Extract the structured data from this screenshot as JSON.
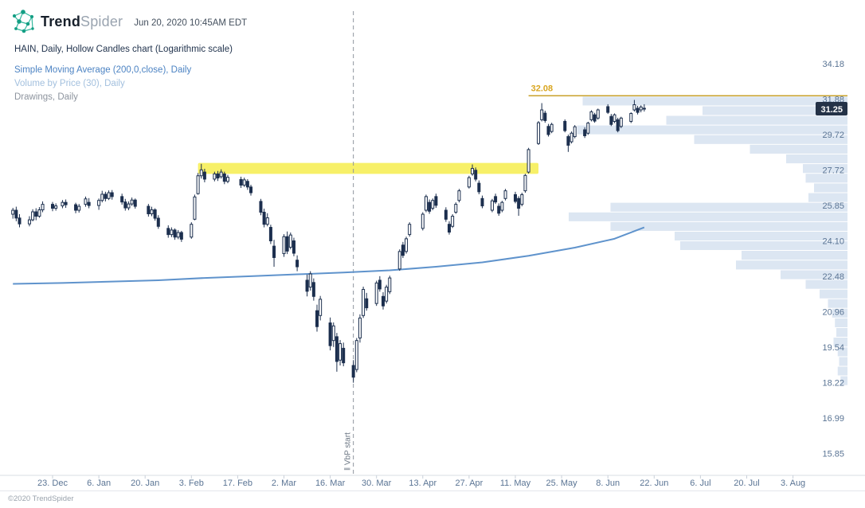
{
  "header": {
    "brand_bold": "Trend",
    "brand_light": "Spider",
    "timestamp": "Jun 20, 2020 10:45AM EDT"
  },
  "legend": {
    "main": {
      "label": "HAIN, Daily, Hollow Candles chart (Logarithmic scale)",
      "color": "#22344e"
    },
    "sma": {
      "label": "Simple Moving Average (200,0,close), Daily",
      "color": "#4c83c3"
    },
    "vbp": {
      "label": "Volume by Price (30), Daily",
      "color": "#a3c0de"
    },
    "drawings": {
      "label": "Drawings, Daily",
      "color": "#8d949e"
    }
  },
  "footer": {
    "copyright": "©2020 TrendSpider"
  },
  "chart_data": {
    "type": "candlestick",
    "symbol": "HAIN",
    "timeframe": "Daily",
    "style": "hollow-candles",
    "scale": "logarithmic",
    "last_price": "31.25",
    "colors": {
      "candle": "#1c2f4e",
      "sma": "#5f93cc",
      "vbp": "#dce6f2",
      "axis_text": "#5a7494",
      "badge_bg": "#243247",
      "badge_text": "#ffffff"
    },
    "y_axis_ticks": [
      "34.18",
      "31.88",
      "29.72",
      "27.72",
      "25.85",
      "24.10",
      "22.48",
      "20.96",
      "19.54",
      "18.22",
      "16.99",
      "15.85"
    ],
    "x_axis_ticks": [
      {
        "date": "2019-12-23",
        "label": "23. Dec"
      },
      {
        "date": "2020-01-06",
        "label": "6. Jan"
      },
      {
        "date": "2020-01-20",
        "label": "20. Jan"
      },
      {
        "date": "2020-02-03",
        "label": "3. Feb"
      },
      {
        "date": "2020-02-17",
        "label": "17. Feb"
      },
      {
        "date": "2020-03-02",
        "label": "2. Mar"
      },
      {
        "date": "2020-03-16",
        "label": "16. Mar"
      },
      {
        "date": "2020-03-30",
        "label": "30. Mar"
      },
      {
        "date": "2020-04-13",
        "label": "13. Apr"
      },
      {
        "date": "2020-04-27",
        "label": "27. Apr"
      },
      {
        "date": "2020-05-11",
        "label": "11. May"
      },
      {
        "date": "2020-05-25",
        "label": "25. May"
      },
      {
        "date": "2020-06-08",
        "label": "8. Jun"
      },
      {
        "date": "2020-06-22",
        "label": "22. Jun"
      },
      {
        "date": "2020-07-06",
        "label": "6. Jul"
      },
      {
        "date": "2020-07-20",
        "label": "20. Jul"
      },
      {
        "date": "2020-08-03",
        "label": "3. Aug"
      }
    ],
    "candles": [
      [
        "2019-12-11",
        25.4,
        25.72,
        25.18,
        25.6
      ],
      [
        "2019-12-12",
        25.6,
        25.78,
        25.05,
        25.21
      ],
      [
        "2019-12-13",
        25.21,
        25.4,
        24.75,
        24.92
      ],
      [
        "2019-12-16",
        24.92,
        25.3,
        24.8,
        25.12
      ],
      [
        "2019-12-17",
        25.12,
        25.65,
        25.05,
        25.52
      ],
      [
        "2019-12-18",
        25.52,
        25.7,
        25.1,
        25.3
      ],
      [
        "2019-12-19",
        25.3,
        25.76,
        25.22,
        25.62
      ],
      [
        "2019-12-20",
        25.62,
        26.05,
        25.5,
        25.9
      ],
      [
        "2019-12-23",
        25.9,
        26.02,
        25.55,
        25.7
      ],
      [
        "2019-12-24",
        25.7,
        25.95,
        25.58,
        25.82
      ],
      [
        "2019-12-26",
        25.82,
        26.12,
        25.7,
        26.0
      ],
      [
        "2019-12-27",
        26.0,
        26.15,
        25.72,
        25.88
      ],
      [
        "2019-12-30",
        25.88,
        25.98,
        25.45,
        25.6
      ],
      [
        "2019-12-31",
        25.6,
        25.92,
        25.48,
        25.8
      ],
      [
        "2020-01-02",
        25.9,
        26.3,
        25.78,
        26.18
      ],
      [
        "2020-01-03",
        26.0,
        26.22,
        25.7,
        25.84
      ],
      [
        "2020-01-06",
        25.84,
        26.2,
        25.62,
        26.1
      ],
      [
        "2020-01-07",
        26.1,
        26.6,
        26.0,
        26.42
      ],
      [
        "2020-01-08",
        26.42,
        26.55,
        26.05,
        26.2
      ],
      [
        "2020-01-09",
        26.2,
        26.62,
        26.12,
        26.5
      ],
      [
        "2020-01-10",
        26.5,
        26.64,
        26.14,
        26.3
      ],
      [
        "2020-01-13",
        26.3,
        26.45,
        25.88,
        26.02
      ],
      [
        "2020-01-14",
        26.02,
        26.18,
        25.58,
        25.72
      ],
      [
        "2020-01-15",
        25.72,
        26.05,
        25.6,
        25.92
      ],
      [
        "2020-01-16",
        25.92,
        26.25,
        25.82,
        26.12
      ],
      [
        "2020-01-17",
        26.12,
        26.2,
        25.68,
        25.8
      ],
      [
        "2020-01-21",
        25.8,
        25.92,
        25.28,
        25.42
      ],
      [
        "2020-01-22",
        25.42,
        25.78,
        25.3,
        25.62
      ],
      [
        "2020-01-23",
        25.62,
        25.7,
        25.08,
        25.2
      ],
      [
        "2020-01-24",
        25.2,
        25.35,
        24.68,
        24.8
      ],
      [
        "2020-01-27",
        24.7,
        24.85,
        24.25,
        24.4
      ],
      [
        "2020-01-28",
        24.4,
        24.75,
        24.28,
        24.62
      ],
      [
        "2020-01-29",
        24.62,
        24.7,
        24.15,
        24.28
      ],
      [
        "2020-01-30",
        24.28,
        24.62,
        24.18,
        24.5
      ],
      [
        "2020-01-31",
        24.5,
        24.58,
        24.05,
        24.18
      ],
      [
        "2020-02-03",
        24.28,
        25.0,
        24.2,
        24.9
      ],
      [
        "2020-02-04",
        25.15,
        26.4,
        25.1,
        26.28
      ],
      [
        "2020-02-05",
        26.45,
        27.55,
        26.4,
        27.4
      ],
      [
        "2020-02-06",
        27.4,
        28.05,
        27.25,
        27.72
      ],
      [
        "2020-02-07",
        27.6,
        27.78,
        27.05,
        27.22
      ],
      [
        "2020-02-10",
        27.22,
        27.62,
        27.1,
        27.5
      ],
      [
        "2020-02-11",
        27.5,
        27.66,
        27.12,
        27.28
      ],
      [
        "2020-02-12",
        27.35,
        27.75,
        27.25,
        27.6
      ],
      [
        "2020-02-13",
        27.5,
        27.62,
        26.95,
        27.1
      ],
      [
        "2020-02-14",
        27.1,
        27.45,
        27.0,
        27.32
      ],
      [
        "2020-02-18",
        27.2,
        27.35,
        26.75,
        26.9
      ],
      [
        "2020-02-19",
        26.9,
        27.3,
        26.8,
        27.18
      ],
      [
        "2020-02-20",
        27.1,
        27.22,
        26.65,
        26.8
      ],
      [
        "2020-02-21",
        26.8,
        26.92,
        26.35,
        26.5
      ],
      [
        "2020-02-24",
        26.05,
        26.18,
        25.35,
        25.5
      ],
      [
        "2020-02-25",
        25.5,
        25.68,
        24.75,
        24.9
      ],
      [
        "2020-02-26",
        24.9,
        25.45,
        24.8,
        25.22
      ],
      [
        "2020-02-27",
        24.75,
        24.88,
        23.95,
        24.1
      ],
      [
        "2020-02-28",
        23.85,
        24.15,
        22.9,
        23.32
      ],
      [
        "2020-03-02",
        23.5,
        24.42,
        23.35,
        24.3
      ],
      [
        "2020-03-03",
        24.3,
        24.55,
        23.48,
        23.62
      ],
      [
        "2020-03-04",
        23.8,
        24.5,
        23.7,
        24.38
      ],
      [
        "2020-03-05",
        24.1,
        24.25,
        23.38,
        23.52
      ],
      [
        "2020-03-06",
        23.2,
        23.42,
        22.7,
        22.9
      ],
      [
        "2020-03-09",
        22.3,
        22.55,
        21.6,
        21.82
      ],
      [
        "2020-03-10",
        22.0,
        22.7,
        21.85,
        22.58
      ],
      [
        "2020-03-11",
        22.2,
        22.38,
        21.42,
        21.6
      ],
      [
        "2020-03-12",
        21.0,
        21.25,
        20.15,
        20.35
      ],
      [
        "2020-03-13",
        20.8,
        21.62,
        20.6,
        21.48
      ],
      [
        "2020-03-16",
        20.5,
        20.72,
        19.42,
        19.6
      ],
      [
        "2020-03-17",
        19.8,
        20.52,
        19.55,
        20.38
      ],
      [
        "2020-03-18",
        19.95,
        20.1,
        18.62,
        19.0
      ],
      [
        "2020-03-19",
        19.05,
        19.82,
        18.85,
        19.68
      ],
      [
        "2020-03-20",
        19.5,
        19.72,
        18.82,
        18.95
      ],
      [
        "2020-03-23",
        18.85,
        19.05,
        18.22,
        18.42
      ],
      [
        "2020-03-24",
        18.7,
        19.9,
        18.6,
        19.8
      ],
      [
        "2020-03-25",
        19.9,
        20.85,
        19.72,
        20.7
      ],
      [
        "2020-03-26",
        20.8,
        22.02,
        20.7,
        21.9
      ],
      [
        "2020-03-27",
        21.5,
        21.75,
        21.0,
        21.12
      ],
      [
        "2020-03-30",
        21.3,
        22.28,
        21.2,
        22.18
      ],
      [
        "2020-03-31",
        22.3,
        22.48,
        21.8,
        21.92
      ],
      [
        "2020-04-01",
        21.6,
        21.78,
        21.05,
        21.2
      ],
      [
        "2020-04-02",
        21.4,
        22.1,
        21.3,
        22.0
      ],
      [
        "2020-04-03",
        21.8,
        22.5,
        21.7,
        22.4
      ],
      [
        "2020-04-06",
        22.8,
        23.7,
        22.72,
        23.6
      ],
      [
        "2020-04-07",
        23.9,
        24.05,
        23.3,
        23.42
      ],
      [
        "2020-04-08",
        23.6,
        24.3,
        23.5,
        24.2
      ],
      [
        "2020-04-09",
        24.4,
        25.0,
        24.3,
        24.9
      ],
      [
        "2020-04-13",
        24.7,
        25.5,
        24.6,
        25.4
      ],
      [
        "2020-04-14",
        25.6,
        26.4,
        25.5,
        26.3
      ],
      [
        "2020-04-15",
        26.0,
        26.15,
        25.42,
        25.55
      ],
      [
        "2020-04-16",
        25.7,
        26.2,
        25.6,
        26.1
      ],
      [
        "2020-04-17",
        26.3,
        26.45,
        25.72,
        25.85
      ],
      [
        "2020-04-20",
        25.6,
        25.75,
        25.02,
        25.15
      ],
      [
        "2020-04-21",
        24.9,
        25.05,
        24.4,
        24.52
      ],
      [
        "2020-04-22",
        24.8,
        25.4,
        24.72,
        25.3
      ],
      [
        "2020-04-23",
        25.5,
        26.0,
        25.42,
        25.9
      ],
      [
        "2020-04-24",
        26.1,
        26.7,
        26.0,
        26.6
      ],
      [
        "2020-04-27",
        26.8,
        27.4,
        26.72,
        27.3
      ],
      [
        "2020-04-28",
        27.5,
        28.02,
        27.4,
        27.8
      ],
      [
        "2020-04-29",
        27.7,
        27.85,
        27.1,
        27.22
      ],
      [
        "2020-04-30",
        27.0,
        27.15,
        26.42,
        26.55
      ],
      [
        "2020-05-01",
        26.2,
        26.35,
        25.7,
        25.82
      ],
      [
        "2020-05-04",
        25.6,
        26.18,
        25.5,
        26.08
      ],
      [
        "2020-05-05",
        26.3,
        26.45,
        25.92,
        26.02
      ],
      [
        "2020-05-06",
        25.8,
        25.95,
        25.32,
        25.45
      ],
      [
        "2020-05-07",
        25.6,
        26.08,
        25.5,
        26.0
      ],
      [
        "2020-05-08",
        26.2,
        26.7,
        26.1,
        26.6
      ],
      [
        "2020-05-11",
        26.4,
        26.55,
        25.95,
        26.05
      ],
      [
        "2020-05-12",
        26.2,
        26.32,
        25.32,
        25.7
      ],
      [
        "2020-05-13",
        25.9,
        26.5,
        25.8,
        26.4
      ],
      [
        "2020-05-14",
        26.6,
        27.5,
        26.5,
        27.42
      ],
      [
        "2020-05-15",
        27.6,
        28.95,
        27.52,
        28.85
      ],
      [
        "2020-05-18",
        29.2,
        30.52,
        29.12,
        30.42
      ],
      [
        "2020-05-19",
        30.6,
        31.62,
        30.5,
        31.2
      ],
      [
        "2020-05-20",
        31.0,
        31.15,
        30.42,
        30.55
      ],
      [
        "2020-05-21",
        30.2,
        30.35,
        29.6,
        29.72
      ],
      [
        "2020-05-22",
        29.9,
        30.42,
        29.8,
        30.32
      ],
      [
        "2020-05-26",
        30.5,
        30.62,
        29.85,
        29.95
      ],
      [
        "2020-05-27",
        29.6,
        29.72,
        28.72,
        29.1
      ],
      [
        "2020-05-28",
        29.3,
        29.9,
        29.2,
        29.8
      ],
      [
        "2020-05-29",
        29.6,
        30.28,
        29.5,
        30.18
      ],
      [
        "2020-06-01",
        30.0,
        30.15,
        29.52,
        29.65
      ],
      [
        "2020-06-02",
        29.8,
        30.48,
        29.7,
        30.4
      ],
      [
        "2020-06-03",
        30.6,
        31.18,
        30.5,
        31.08
      ],
      [
        "2020-06-04",
        30.9,
        31.02,
        30.42,
        30.52
      ],
      [
        "2020-06-05",
        30.7,
        31.28,
        30.6,
        31.2
      ],
      [
        "2020-06-08",
        31.4,
        31.55,
        30.95,
        31.05
      ],
      [
        "2020-06-09",
        30.8,
        30.95,
        30.22,
        30.32
      ],
      [
        "2020-06-10",
        30.5,
        30.98,
        30.4,
        30.9
      ],
      [
        "2020-06-11",
        30.6,
        30.72,
        29.85,
        29.95
      ],
      [
        "2020-06-12",
        30.2,
        30.78,
        30.1,
        30.7
      ],
      [
        "2020-06-15",
        30.5,
        31.05,
        30.4,
        30.98
      ],
      [
        "2020-06-16",
        31.2,
        31.82,
        31.1,
        31.52
      ],
      [
        "2020-06-17",
        31.3,
        31.45,
        30.92,
        31.05
      ],
      [
        "2020-06-18",
        31.2,
        31.48,
        31.05,
        31.38
      ],
      [
        "2020-06-19",
        31.3,
        31.55,
        31.1,
        31.25
      ]
    ],
    "sma200": [
      [
        "2019-12-11",
        22.14
      ],
      [
        "2019-12-26",
        22.18
      ],
      [
        "2020-01-10",
        22.24
      ],
      [
        "2020-01-24",
        22.3
      ],
      [
        "2020-02-07",
        22.4
      ],
      [
        "2020-02-21",
        22.48
      ],
      [
        "2020-03-06",
        22.56
      ],
      [
        "2020-03-20",
        22.64
      ],
      [
        "2020-04-03",
        22.74
      ],
      [
        "2020-04-17",
        22.9
      ],
      [
        "2020-05-01",
        23.1
      ],
      [
        "2020-05-15",
        23.4
      ],
      [
        "2020-05-29",
        23.78
      ],
      [
        "2020-06-10",
        24.2
      ],
      [
        "2020-06-19",
        24.75
      ]
    ],
    "volume_by_price": [
      {
        "hi": 32.05,
        "lo": 31.45,
        "frac": 0.95
      },
      {
        "hi": 31.45,
        "lo": 30.86,
        "frac": 0.52
      },
      {
        "hi": 30.86,
        "lo": 30.28,
        "frac": 0.65
      },
      {
        "hi": 30.28,
        "lo": 29.71,
        "frac": 0.97
      },
      {
        "hi": 29.71,
        "lo": 29.15,
        "frac": 0.55
      },
      {
        "hi": 29.15,
        "lo": 28.6,
        "frac": 0.35
      },
      {
        "hi": 28.6,
        "lo": 28.06,
        "frac": 0.22
      },
      {
        "hi": 28.06,
        "lo": 27.53,
        "frac": 0.16
      },
      {
        "hi": 27.53,
        "lo": 27.01,
        "frac": 0.15
      },
      {
        "hi": 27.01,
        "lo": 26.5,
        "frac": 0.12
      },
      {
        "hi": 26.5,
        "lo": 26.0,
        "frac": 0.14
      },
      {
        "hi": 26.0,
        "lo": 25.51,
        "frac": 0.85
      },
      {
        "hi": 25.51,
        "lo": 25.03,
        "frac": 1.0
      },
      {
        "hi": 25.03,
        "lo": 24.56,
        "frac": 0.85
      },
      {
        "hi": 24.56,
        "lo": 24.1,
        "frac": 0.62
      },
      {
        "hi": 24.1,
        "lo": 23.65,
        "frac": 0.6
      },
      {
        "hi": 23.65,
        "lo": 23.2,
        "frac": 0.38
      },
      {
        "hi": 23.2,
        "lo": 22.76,
        "frac": 0.4
      },
      {
        "hi": 22.76,
        "lo": 22.33,
        "frac": 0.24
      },
      {
        "hi": 22.33,
        "lo": 21.91,
        "frac": 0.15
      },
      {
        "hi": 21.91,
        "lo": 21.5,
        "frac": 0.1
      },
      {
        "hi": 21.5,
        "lo": 21.1,
        "frac": 0.07
      },
      {
        "hi": 21.1,
        "lo": 20.7,
        "frac": 0.055
      },
      {
        "hi": 20.7,
        "lo": 20.31,
        "frac": 0.045
      },
      {
        "hi": 20.31,
        "lo": 19.93,
        "frac": 0.04
      },
      {
        "hi": 19.93,
        "lo": 19.55,
        "frac": 0.05
      },
      {
        "hi": 19.55,
        "lo": 19.18,
        "frac": 0.035
      },
      {
        "hi": 19.18,
        "lo": 18.82,
        "frac": 0.03
      },
      {
        "hi": 18.82,
        "lo": 18.47,
        "frac": 0.035
      },
      {
        "hi": 18.47,
        "lo": 18.12,
        "frac": 0.025
      }
    ],
    "drawings": {
      "resistance_line": {
        "label": "32.08",
        "price": 32.08,
        "start_date": "2020-05-15",
        "color": "#c9a22b",
        "label_color": "#d9a621"
      },
      "highlight_band": {
        "price_top": 28.1,
        "price_bottom": 27.5,
        "start_date": "2020-02-05",
        "end_date": "2020-05-18",
        "color": "#f6ee58"
      },
      "vbp_start_line": {
        "label": "‖ VbP start",
        "date": "2020-03-23",
        "color": "#8e959e",
        "label_color": "#6b7683"
      }
    }
  }
}
